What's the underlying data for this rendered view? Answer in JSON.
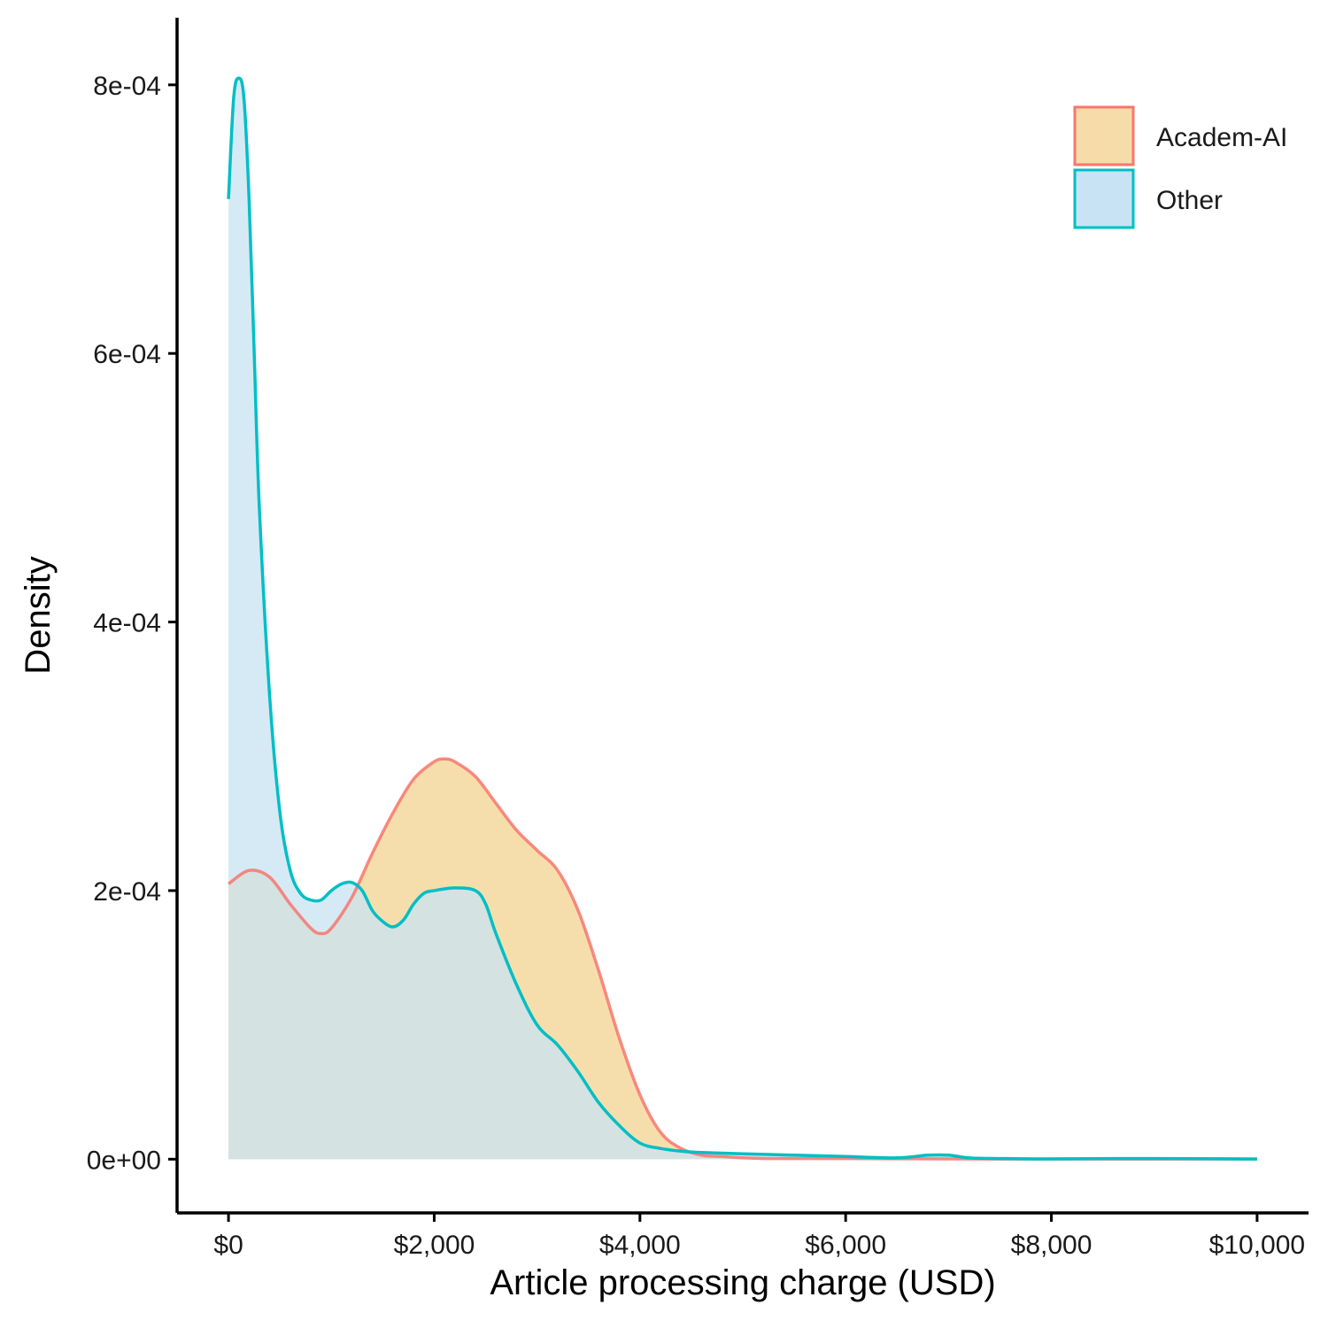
{
  "chart_data": {
    "type": "area",
    "title": "",
    "xlabel": "Article processing charge (USD)",
    "ylabel": "Density",
    "xlim": [
      -500,
      10500
    ],
    "ylim": [
      -4e-05,
      0.00085
    ],
    "x_ticks": [
      {
        "value": 0,
        "label": "$0"
      },
      {
        "value": 2000,
        "label": "$2,000"
      },
      {
        "value": 4000,
        "label": "$4,000"
      },
      {
        "value": 6000,
        "label": "$6,000"
      },
      {
        "value": 8000,
        "label": "$8,000"
      },
      {
        "value": 10000,
        "label": "$10,000"
      }
    ],
    "y_ticks": [
      {
        "value": 0,
        "label": "0e+00"
      },
      {
        "value": 0.0002,
        "label": "2e-04"
      },
      {
        "value": 0.0004,
        "label": "4e-04"
      },
      {
        "value": 0.0006,
        "label": "6e-04"
      },
      {
        "value": 0.0008,
        "label": "8e-04"
      }
    ],
    "grid": false,
    "legend_position": "top-right",
    "series": [
      {
        "name": "Academ-AI",
        "line_color": "#F8766D",
        "fill_color": "#F5DCA8",
        "x": [
          0,
          200,
          400,
          600,
          800,
          900,
          1000,
          1200,
          1400,
          1600,
          1800,
          2000,
          2100,
          2200,
          2400,
          2600,
          2800,
          3000,
          3200,
          3400,
          3600,
          3800,
          4000,
          4200,
          4400,
          4600,
          4800,
          5000,
          5200,
          5500,
          6000,
          7000,
          8000,
          9000,
          10000
        ],
        "y": [
          0.000205,
          0.000215,
          0.00021,
          0.00019,
          0.000172,
          0.000168,
          0.000172,
          0.000195,
          0.000228,
          0.000258,
          0.000283,
          0.000296,
          0.000298,
          0.000296,
          0.000285,
          0.000265,
          0.000245,
          0.00023,
          0.000215,
          0.000185,
          0.00014,
          9e-05,
          4.8e-05,
          2e-05,
          8e-06,
          3e-06,
          2e-06,
          1e-06,
          5e-07,
          5e-07,
          5e-07,
          2e-07,
          1e-07,
          1e-07,
          1e-07
        ]
      },
      {
        "name": "Other",
        "line_color": "#00BFC4",
        "fill_color": "#C8E3F3",
        "x": [
          0,
          50,
          100,
          150,
          200,
          250,
          300,
          400,
          500,
          600,
          700,
          800,
          900,
          1000,
          1100,
          1200,
          1300,
          1400,
          1500,
          1600,
          1700,
          1800,
          1900,
          2000,
          2200,
          2400,
          2500,
          2600,
          2800,
          3000,
          3200,
          3400,
          3600,
          3800,
          4000,
          4200,
          4400,
          4600,
          5000,
          5500,
          6000,
          6500,
          6800,
          7000,
          7200,
          7500,
          8000,
          9000,
          10000
        ],
        "y": [
          0.000715,
          0.00079,
          0.000805,
          0.00079,
          0.000715,
          0.0006,
          0.000485,
          0.000345,
          0.000258,
          0.000215,
          0.000198,
          0.000193,
          0.000193,
          0.0002,
          0.000205,
          0.000206,
          0.0002,
          0.000185,
          0.000177,
          0.000173,
          0.000178,
          0.00019,
          0.000198,
          0.0002,
          0.000202,
          0.0002,
          0.00019,
          0.000168,
          0.00013,
          0.0001,
          8.5e-05,
          6.5e-05,
          4.2e-05,
          2.5e-05,
          1.2e-05,
          8e-06,
          6e-06,
          5e-06,
          4e-06,
          3e-06,
          2e-06,
          1e-06,
          3e-06,
          3e-06,
          1e-06,
          5e-07,
          2e-07,
          5e-07,
          1e-07
        ]
      }
    ]
  }
}
